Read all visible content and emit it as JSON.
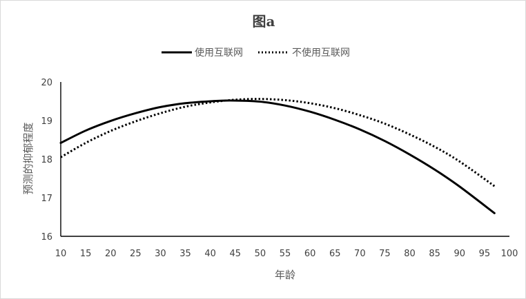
{
  "chart_data": {
    "type": "line",
    "title": "图a",
    "xlabel": "年龄",
    "ylabel": "预测的抑郁程度",
    "xlim": [
      10,
      100
    ],
    "ylim": [
      16,
      20
    ],
    "x_ticks": [
      10,
      15,
      20,
      25,
      30,
      35,
      40,
      45,
      50,
      55,
      60,
      65,
      70,
      75,
      80,
      85,
      90,
      95,
      100
    ],
    "y_ticks": [
      16,
      17,
      18,
      19,
      20
    ],
    "grid": false,
    "legend_position": "top",
    "series": [
      {
        "name": "使用互联网",
        "style": "solid",
        "color": "#000000",
        "x": [
          10,
          15,
          20,
          25,
          30,
          35,
          40,
          44,
          50,
          55,
          60,
          65,
          70,
          75,
          80,
          85,
          90,
          97
        ],
        "y": [
          18.42,
          18.74,
          18.99,
          19.19,
          19.35,
          19.45,
          19.5,
          19.52,
          19.49,
          19.39,
          19.23,
          19.02,
          18.77,
          18.47,
          18.12,
          17.73,
          17.29,
          16.6
        ]
      },
      {
        "name": "不使用互联网",
        "style": "dotted",
        "color": "#000000",
        "x": [
          10,
          15,
          20,
          25,
          30,
          35,
          40,
          45,
          50,
          55,
          60,
          65,
          70,
          75,
          80,
          85,
          90,
          97
        ],
        "y": [
          18.05,
          18.42,
          18.73,
          18.98,
          19.19,
          19.36,
          19.47,
          19.54,
          19.56,
          19.53,
          19.45,
          19.32,
          19.14,
          18.92,
          18.64,
          18.32,
          17.94,
          17.3
        ]
      }
    ]
  }
}
